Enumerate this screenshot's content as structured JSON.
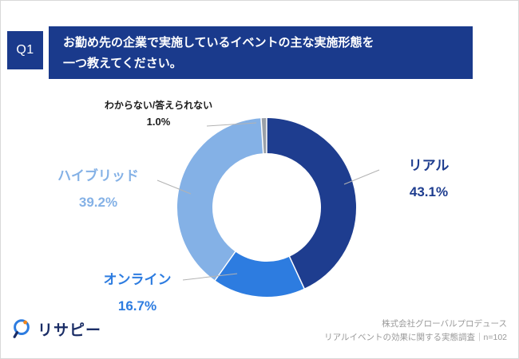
{
  "colors": {
    "banner_bg": "#1a3a8c",
    "q_box_bg": "#1a3a8c",
    "logo_text": "#1a2d66",
    "credit_text": "#999999",
    "leader_line": "#b3b3b3"
  },
  "header": {
    "q_label": "Q1",
    "title_line1": "お勤め先の企業で実施しているイベントの主な実施形態を",
    "title_line2": "一つ教えてください。"
  },
  "chart_data": {
    "type": "pie",
    "donut": true,
    "title": "お勤め先の企業で実施しているイベントの主な実施形態を一つ教えてください。",
    "unit": "%",
    "n": 102,
    "start_angle_deg": -90,
    "direction": "clockwise",
    "segments": [
      {
        "key": "real",
        "label": "リアル",
        "value": 43.1,
        "color": "#1e3d8f"
      },
      {
        "key": "online",
        "label": "オンライン",
        "value": 16.7,
        "color": "#2d7ce0"
      },
      {
        "key": "hybrid",
        "label": "ハイブリッド",
        "value": 39.2,
        "color": "#84b1e6"
      },
      {
        "key": "dontknow",
        "label": "わからない/答えられない",
        "value": 1.0,
        "color": "#9aa0a8"
      }
    ]
  },
  "callouts": {
    "dontknow": {
      "label": "わからない/答えられない",
      "pct": "1.0%",
      "color": "#1a1a1a"
    },
    "real": {
      "label": "リアル",
      "pct": "43.1%",
      "color": "#1e3d8f"
    },
    "hybrid": {
      "label": "ハイブリッド",
      "pct": "39.2%",
      "color": "#84b1e6"
    },
    "online": {
      "label": "オンライン",
      "pct": "16.7%",
      "color": "#2d7ce0"
    }
  },
  "footer": {
    "logo_text": "リサピー",
    "credit_line1": "株式会社グローバルプロデュース",
    "credit_line2": "リアルイベントの効果に関する実態調査｜n=102"
  }
}
